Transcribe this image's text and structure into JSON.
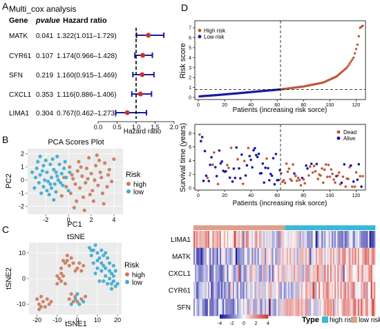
{
  "panel_letters": {
    "A": "A",
    "B": "B",
    "C": "C",
    "D": "D"
  },
  "colors": {
    "high": "#c0583a",
    "low_alive": "#1a1aa0",
    "pca_high": "#c87a5a",
    "pca_low": "#3aaad0",
    "forest_point": "#c83232",
    "forest_ci": "#1a1aa0",
    "type_high": "#3ab8d8",
    "type_low": "#dca08c",
    "heat_neg": "#1a1a9e",
    "heat_mid": "#ffffff",
    "heat_pos": "#d23a32"
  },
  "chart_data": [
    {
      "panel": "A",
      "type": "forest",
      "title": "Multi_cox analysis",
      "headers": {
        "gene": "Gene",
        "pvalue": "pvalue",
        "hr": "Hazard ratio"
      },
      "rows": [
        {
          "gene": "MATK",
          "pvalue": "0.041",
          "hr_text": "1.322(1.011–1.729)",
          "hr": 1.322,
          "lo": 1.011,
          "hi": 1.729
        },
        {
          "gene": "CYR61",
          "pvalue": "0.107",
          "hr_text": "1.174(0.966–1.428)",
          "hr": 1.174,
          "lo": 0.966,
          "hi": 1.428
        },
        {
          "gene": "SFN",
          "pvalue": "0.219",
          "hr_text": "1.160(0.915–1.469)",
          "hr": 1.16,
          "lo": 0.915,
          "hi": 1.469
        },
        {
          "gene": "CXCL1",
          "pvalue": "0.353",
          "hr_text": "1.116(0.886–1.406)",
          "hr": 1.116,
          "lo": 0.886,
          "hi": 1.406
        },
        {
          "gene": "LIMA1",
          "pvalue": "0.304",
          "hr_text": "0.767(0.462–1.273)",
          "hr": 0.767,
          "lo": 0.462,
          "hi": 1.273
        }
      ],
      "xticks": [
        "0.0",
        "0.5",
        "1.0",
        "1.5",
        "2.0"
      ],
      "xlim": [
        0,
        2.0
      ],
      "xlabel": "Hazard ratio",
      "reference_line": 1.0
    },
    {
      "panel": "B",
      "type": "scatter",
      "title": "PCA Scores Plot",
      "xlabel": "PC1",
      "ylabel": "PC2",
      "xticks": [
        "-2",
        "0",
        "2",
        "4"
      ],
      "yticks": [
        "-2",
        "-1",
        "0",
        "1",
        "2"
      ],
      "xlim": [
        -3.6,
        4.8
      ],
      "ylim": [
        -2.6,
        2.4
      ],
      "legend": {
        "title": "Risk",
        "items": [
          "high",
          "low"
        ]
      },
      "series": [
        {
          "name": "high",
          "points": [
            [
              0.3,
              0.4
            ],
            [
              0.8,
              0.7
            ],
            [
              1.2,
              0.3
            ],
            [
              1.6,
              0.9
            ],
            [
              2.0,
              0.5
            ],
            [
              2.4,
              1.1
            ],
            [
              2.8,
              0.6
            ],
            [
              3.2,
              1.3
            ],
            [
              3.6,
              0.8
            ],
            [
              0.6,
              -0.3
            ],
            [
              1.0,
              -0.6
            ],
            [
              1.5,
              -0.2
            ],
            [
              2.1,
              -0.8
            ],
            [
              2.6,
              -0.4
            ],
            [
              3.0,
              -1.0
            ],
            [
              3.4,
              -0.5
            ],
            [
              4.0,
              1.6
            ],
            [
              0.9,
              1.4
            ],
            [
              1.8,
              1.7
            ],
            [
              2.5,
              1.9
            ],
            [
              0.2,
              -1.0
            ],
            [
              1.3,
              -1.3
            ],
            [
              2.2,
              -1.6
            ],
            [
              3.1,
              -1.8
            ],
            [
              0.5,
              -2.1
            ],
            [
              1.7,
              0.1
            ],
            [
              2.9,
              0.2
            ],
            [
              3.8,
              -0.1
            ],
            [
              -0.4,
              0.2
            ],
            [
              -0.2,
              -0.5
            ],
            [
              0.1,
              1.0
            ],
            [
              1.1,
              1.0
            ],
            [
              2.3,
              0.0
            ],
            [
              3.5,
              0.4
            ],
            [
              1.9,
              -1.1
            ],
            [
              0.7,
              -1.6
            ],
            [
              -0.6,
              -1.2
            ],
            [
              2.7,
              1.5
            ],
            [
              1.4,
              -2.3
            ],
            [
              0.4,
              0.1
            ]
          ]
        },
        {
          "name": "low",
          "points": [
            [
              -2.8,
              0.9
            ],
            [
              -2.5,
              0.4
            ],
            [
              -2.2,
              1.1
            ],
            [
              -1.9,
              0.6
            ],
            [
              -1.6,
              1.2
            ],
            [
              -1.3,
              0.8
            ],
            [
              -1.0,
              0.3
            ],
            [
              -2.6,
              -0.2
            ],
            [
              -2.2,
              -0.5
            ],
            [
              -1.8,
              -0.1
            ],
            [
              -1.5,
              -0.6
            ],
            [
              -1.2,
              -0.3
            ],
            [
              -0.9,
              0.0
            ],
            [
              -0.6,
              0.5
            ],
            [
              -2.9,
              0.2
            ],
            [
              -2.0,
              1.5
            ],
            [
              -1.4,
              1.6
            ],
            [
              -0.8,
              1.2
            ],
            [
              -0.4,
              0.9
            ],
            [
              -2.4,
              -1.0
            ],
            [
              -1.7,
              -1.1
            ],
            [
              -1.1,
              -0.9
            ],
            [
              -0.5,
              -0.4
            ],
            [
              -3.2,
              0.6
            ],
            [
              -2.1,
              0.0
            ],
            [
              -1.5,
              0.2
            ],
            [
              -0.7,
              -0.2
            ],
            [
              -1.9,
              -0.8
            ],
            [
              -2.7,
              1.4
            ],
            [
              -1.0,
              1.8
            ],
            [
              -0.3,
              1.4
            ],
            [
              -1.3,
              -1.5
            ],
            [
              0.1,
              0.6
            ],
            [
              -3.0,
              -0.6
            ],
            [
              -2.3,
              0.7
            ],
            [
              -1.6,
              -0.3
            ],
            [
              -0.2,
              0.2
            ],
            [
              -1.1,
              0.6
            ],
            [
              -2.5,
              1.8
            ],
            [
              0.0,
              -0.8
            ]
          ]
        }
      ]
    },
    {
      "panel": "C",
      "type": "scatter",
      "title": "tSNE",
      "xlabel": "tSNE1",
      "ylabel": "tSNE2",
      "xticks": [
        "-20",
        "-10",
        "0",
        "10",
        "20"
      ],
      "yticks": [
        "-10",
        "0",
        "10"
      ],
      "xlim": [
        -24,
        22
      ],
      "ylim": [
        -14,
        14
      ],
      "legend": {
        "title": "Risk",
        "items": [
          "high",
          "low"
        ]
      },
      "series": [
        {
          "name": "high",
          "points": [
            [
              -20,
              -8
            ],
            [
              -19,
              -10
            ],
            [
              -18,
              -7
            ],
            [
              -17,
              -9
            ],
            [
              -16,
              -11
            ],
            [
              -15,
              -8
            ],
            [
              -14,
              -10
            ],
            [
              -18,
              -11
            ],
            [
              -19,
              -12
            ],
            [
              -13,
              -9
            ],
            [
              -10,
              -2
            ],
            [
              -9,
              0
            ],
            [
              -8,
              -1
            ],
            [
              -7,
              1
            ],
            [
              -6,
              -2
            ],
            [
              -10,
              1
            ],
            [
              -8,
              2
            ],
            [
              -4,
              -8
            ],
            [
              -2,
              -9
            ],
            [
              -1,
              -7
            ],
            [
              0,
              -9
            ],
            [
              2,
              -8
            ],
            [
              -3,
              -6
            ],
            [
              -6,
              6
            ],
            [
              -5,
              7
            ],
            [
              -4,
              5
            ],
            [
              -3,
              8
            ],
            [
              -2,
              6
            ],
            [
              -5,
              9
            ],
            [
              0,
              4
            ],
            [
              2,
              3
            ],
            [
              1,
              6
            ],
            [
              3,
              5
            ],
            [
              -1,
              3
            ],
            [
              -8,
              4
            ],
            [
              -7,
              7
            ],
            [
              4,
              -7
            ]
          ]
        },
        {
          "name": "low",
          "points": [
            [
              6,
              12
            ],
            [
              8,
              11
            ],
            [
              9,
              13
            ],
            [
              10,
              10
            ],
            [
              12,
              11
            ],
            [
              13,
              9
            ],
            [
              11,
              8
            ],
            [
              7,
              9
            ],
            [
              14,
              10
            ],
            [
              15,
              8
            ],
            [
              16,
              6
            ],
            [
              12,
              6
            ],
            [
              18,
              5
            ],
            [
              19,
              3
            ],
            [
              17,
              2
            ],
            [
              16,
              0
            ],
            [
              14,
              1
            ],
            [
              18,
              -1
            ],
            [
              15,
              -2
            ],
            [
              13,
              -1
            ],
            [
              19,
              -3
            ],
            [
              17,
              -4
            ],
            [
              12,
              3
            ],
            [
              10,
              4
            ],
            [
              8,
              6
            ],
            [
              9,
              2
            ],
            [
              11,
              -1
            ],
            [
              -1,
              -8
            ],
            [
              0,
              -6
            ],
            [
              1,
              -10
            ],
            [
              3,
              -9
            ],
            [
              -3,
              -10
            ],
            [
              14,
              4
            ],
            [
              16,
              3
            ],
            [
              10,
              7
            ],
            [
              7,
              11
            ],
            [
              18,
              1
            ],
            [
              20,
              -2
            ],
            [
              13,
              5
            ],
            [
              17,
              -2
            ]
          ]
        }
      ]
    },
    {
      "panel": "D1",
      "type": "scatter",
      "xlabel": "Patients (increasing risk sorce)",
      "ylabel": "Risk score",
      "xticks": [
        "0",
        "20",
        "40",
        "60",
        "80",
        "100",
        "120"
      ],
      "yticks": [
        "0",
        "1",
        "2",
        "3",
        "4",
        "5",
        "6",
        "7"
      ],
      "xlim": [
        0,
        125
      ],
      "ylim": [
        0,
        7.5
      ],
      "legend": {
        "items": [
          "High risk",
          "Low risk"
        ]
      },
      "cutoff": {
        "patient": 62.5,
        "risk_score": 0.8
      },
      "n_patients": 125,
      "risk_curve_anchors": [
        [
          0,
          0.1
        ],
        [
          15,
          0.25
        ],
        [
          30,
          0.42
        ],
        [
          45,
          0.6
        ],
        [
          62,
          0.8
        ],
        [
          80,
          1.1
        ],
        [
          95,
          1.5
        ],
        [
          105,
          2.1
        ],
        [
          113,
          3.0
        ],
        [
          118,
          4.0
        ],
        [
          121,
          5.3
        ],
        [
          123,
          7.0
        ],
        [
          125,
          7.2
        ]
      ]
    },
    {
      "panel": "D2",
      "type": "scatter",
      "xlabel": "Patients (increasing risk sorce)",
      "ylabel": "Survival time (years)",
      "xticks": [
        "0",
        "20",
        "40",
        "60",
        "80",
        "100",
        "120"
      ],
      "yticks": [
        "0",
        "2",
        "4",
        "6",
        "8"
      ],
      "xlim": [
        0,
        125
      ],
      "ylim": [
        0,
        9
      ],
      "legend": {
        "items": [
          "Dead",
          "Alive"
        ]
      },
      "cutoff": {
        "patient": 62.5
      },
      "n_patients": 125
    },
    {
      "panel": "D3",
      "type": "heatmap",
      "genes": [
        "LIMA1",
        "MATK",
        "CXCL1",
        "CYR61",
        "SFN"
      ],
      "n_columns": 125,
      "split_column": 62.5,
      "scale": {
        "ticks": [
          "-4",
          "-2",
          "0",
          "2",
          "4"
        ],
        "min": -4,
        "max": 4
      },
      "legend": {
        "title": "Type",
        "items": [
          "high risk",
          "low risk"
        ]
      },
      "gene_trend": {
        "LIMA1": -1,
        "MATK": 1,
        "CXCL1": 1,
        "CYR61": 1,
        "SFN": 1
      }
    }
  ]
}
